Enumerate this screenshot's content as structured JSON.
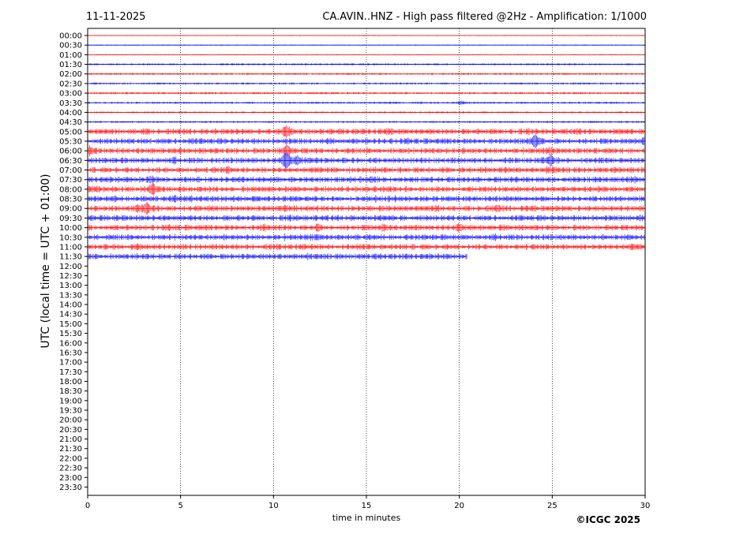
{
  "header": {
    "date": "11-11-2025",
    "title": "CA.AVIN..HNZ - High pass filtered @2Hz - Amplification: 1/1000"
  },
  "footer": {
    "copyright": "©ICGC 2025"
  },
  "chart_data": {
    "type": "helicorder",
    "xlabel": "time in minutes",
    "ylabel": "UTC (local time = UTC + 01:00)",
    "xlim": [
      0,
      30
    ],
    "xticks": [
      0,
      5,
      10,
      15,
      20,
      25,
      30
    ],
    "vertical_gridlines_at": [
      5,
      10,
      15,
      20,
      25
    ],
    "row_labels": [
      "00:00",
      "00:30",
      "01:00",
      "01:30",
      "02:00",
      "02:30",
      "03:00",
      "03:30",
      "04:00",
      "04:30",
      "05:00",
      "05:30",
      "06:00",
      "06:30",
      "07:00",
      "07:30",
      "08:00",
      "08:30",
      "09:00",
      "09:30",
      "10:00",
      "10:30",
      "11:00",
      "11:30",
      "12:00",
      "12:30",
      "13:00",
      "13:30",
      "14:00",
      "14:30",
      "15:00",
      "15:30",
      "16:00",
      "16:30",
      "17:00",
      "17:30",
      "18:00",
      "18:30",
      "19:00",
      "19:30",
      "20:00",
      "20:30",
      "21:00",
      "21:30",
      "22:00",
      "22:30",
      "23:00",
      "23:30"
    ],
    "trace_colors": [
      "#ff0000",
      "#0000ff"
    ],
    "last_row_end_minute": 20.4,
    "events": [
      {
        "row": "03:00",
        "minute": 9.1,
        "amp": 0.1
      },
      {
        "row": "03:30",
        "minute": 16.3,
        "amp": 0.15
      },
      {
        "row": "03:30",
        "minute": 17.9,
        "amp": 0.12
      },
      {
        "row": "03:30",
        "minute": 20.1,
        "amp": 0.45
      },
      {
        "row": "04:30",
        "minute": 27.2,
        "amp": 0.15
      },
      {
        "row": "05:00",
        "minute": 3.0,
        "amp": 0.4
      },
      {
        "row": "05:00",
        "minute": 10.7,
        "amp": 1.6
      },
      {
        "row": "05:00",
        "minute": 16.2,
        "amp": 0.55
      },
      {
        "row": "05:00",
        "minute": 26.5,
        "amp": 0.3
      },
      {
        "row": "05:30",
        "minute": 5.5,
        "amp": 0.3
      },
      {
        "row": "05:30",
        "minute": 13.2,
        "amp": 0.3
      },
      {
        "row": "05:30",
        "minute": 24.1,
        "amp": 1.9
      },
      {
        "row": "05:30",
        "minute": 30.0,
        "amp": 0.9
      },
      {
        "row": "06:00",
        "minute": 0.1,
        "amp": 0.9
      },
      {
        "row": "06:00",
        "minute": 4.8,
        "amp": 0.3
      },
      {
        "row": "06:00",
        "minute": 10.7,
        "amp": 1.5
      },
      {
        "row": "06:00",
        "minute": 24.9,
        "amp": 0.5
      },
      {
        "row": "06:30",
        "minute": 4.7,
        "amp": 0.45
      },
      {
        "row": "06:30",
        "minute": 10.7,
        "amp": 2.6
      },
      {
        "row": "06:30",
        "minute": 11.3,
        "amp": 0.9
      },
      {
        "row": "06:30",
        "minute": 12.4,
        "amp": 0.35
      },
      {
        "row": "06:30",
        "minute": 24.9,
        "amp": 1.1
      },
      {
        "row": "07:00",
        "minute": 7.6,
        "amp": 0.55
      },
      {
        "row": "07:00",
        "minute": 22.5,
        "amp": 0.3
      },
      {
        "row": "07:00",
        "minute": 25.0,
        "amp": 0.3
      },
      {
        "row": "07:30",
        "minute": 3.5,
        "amp": 0.7
      },
      {
        "row": "07:30",
        "minute": 15.3,
        "amp": 0.55
      },
      {
        "row": "07:30",
        "minute": 29.4,
        "amp": 0.5
      },
      {
        "row": "08:00",
        "minute": 0.3,
        "amp": 0.45
      },
      {
        "row": "08:00",
        "minute": 3.5,
        "amp": 1.4
      },
      {
        "row": "08:00",
        "minute": 27.5,
        "amp": 0.4
      },
      {
        "row": "08:30",
        "minute": 1.5,
        "amp": 0.3
      },
      {
        "row": "08:30",
        "minute": 3.1,
        "amp": 0.3
      },
      {
        "row": "08:30",
        "minute": 4.7,
        "amp": 0.4
      },
      {
        "row": "08:30",
        "minute": 5.5,
        "amp": 0.45
      },
      {
        "row": "08:30",
        "minute": 15.5,
        "amp": 0.3
      },
      {
        "row": "09:00",
        "minute": 2.7,
        "amp": 0.5
      },
      {
        "row": "09:00",
        "minute": 3.2,
        "amp": 1.6
      },
      {
        "row": "09:00",
        "minute": 10.5,
        "amp": 0.35
      },
      {
        "row": "09:00",
        "minute": 18.8,
        "amp": 0.45
      },
      {
        "row": "09:00",
        "minute": 22.0,
        "amp": 0.45
      },
      {
        "row": "09:00",
        "minute": 23.8,
        "amp": 0.4
      },
      {
        "row": "09:30",
        "minute": 29.7,
        "amp": 0.4
      },
      {
        "row": "10:00",
        "minute": 9.5,
        "amp": 0.45
      },
      {
        "row": "10:00",
        "minute": 12.4,
        "amp": 0.55
      },
      {
        "row": "10:00",
        "minute": 15.9,
        "amp": 0.55
      },
      {
        "row": "10:00",
        "minute": 20.0,
        "amp": 0.7
      },
      {
        "row": "10:00",
        "minute": 22.4,
        "amp": 0.3
      },
      {
        "row": "10:30",
        "minute": 12.3,
        "amp": 0.45
      },
      {
        "row": "10:30",
        "minute": 22.0,
        "amp": 0.4
      },
      {
        "row": "11:00",
        "minute": 2.8,
        "amp": 0.35
      },
      {
        "row": "11:00",
        "minute": 10.3,
        "amp": 0.2
      },
      {
        "row": "11:00",
        "minute": 29.3,
        "amp": 0.25
      }
    ]
  }
}
